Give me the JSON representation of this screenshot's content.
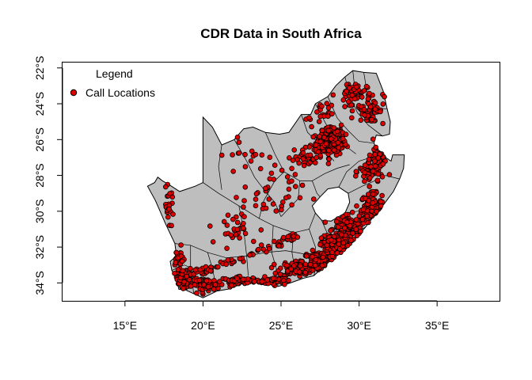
{
  "map": {
    "title": "CDR Data in South Africa",
    "projection": "plain longitude/latitude (base R plot)",
    "x_axis": {
      "range": [
        11,
        39
      ],
      "ticks": [
        15,
        20,
        25,
        30,
        35
      ],
      "tick_labels": [
        "15°E",
        "20°E",
        "25°E",
        "30°E",
        "35°E"
      ]
    },
    "y_axis": {
      "range": [
        -35,
        -21.7
      ],
      "ticks": [
        -22,
        -24,
        -26,
        -28,
        -30,
        -32,
        -34
      ],
      "tick_labels": [
        "22°S",
        "24°S",
        "26°S",
        "28°S",
        "30°S",
        "32°S",
        "34°S"
      ]
    },
    "legend": {
      "title": "Legend",
      "position": "top-left",
      "items": [
        {
          "label": "Call Locations",
          "color": "#e00000"
        }
      ]
    },
    "colors": {
      "land": "#bebebe",
      "boundary": "#000000",
      "point_fill": "#e00000",
      "point_stroke": "#000000",
      "lesotho": "#ffffff"
    },
    "outline": [
      [
        16.45,
        -28.6
      ],
      [
        16.9,
        -28.4
      ],
      [
        17.1,
        -28.1
      ],
      [
        17.4,
        -28.3
      ],
      [
        17.8,
        -28.5
      ],
      [
        18.5,
        -28.9
      ],
      [
        19.5,
        -28.6
      ],
      [
        20.0,
        -28.4
      ],
      [
        20.0,
        -24.75
      ],
      [
        20.6,
        -25.3
      ],
      [
        21.2,
        -26.3
      ],
      [
        22.0,
        -26.0
      ],
      [
        22.6,
        -25.4
      ],
      [
        23.2,
        -25.3
      ],
      [
        24.0,
        -25.6
      ],
      [
        24.9,
        -25.7
      ],
      [
        25.5,
        -25.6
      ],
      [
        26.3,
        -24.6
      ],
      [
        26.9,
        -24.6
      ],
      [
        27.2,
        -24.0
      ],
      [
        28.0,
        -23.6
      ],
      [
        28.5,
        -23.0
      ],
      [
        29.1,
        -22.5
      ],
      [
        29.6,
        -22.15
      ],
      [
        30.3,
        -22.25
      ],
      [
        31.1,
        -22.3
      ],
      [
        31.55,
        -23.3
      ],
      [
        31.8,
        -24.3
      ],
      [
        32.0,
        -25.0
      ],
      [
        31.95,
        -25.7
      ],
      [
        31.5,
        -25.8
      ],
      [
        31.1,
        -25.75
      ],
      [
        30.95,
        -26.2
      ],
      [
        31.2,
        -26.6
      ],
      [
        31.7,
        -27.0
      ],
      [
        32.05,
        -27.2
      ],
      [
        32.15,
        -26.85
      ],
      [
        32.9,
        -26.85
      ],
      [
        32.85,
        -27.6
      ],
      [
        32.6,
        -28.2
      ],
      [
        32.2,
        -28.9
      ],
      [
        31.6,
        -29.6
      ],
      [
        31.0,
        -30.2
      ],
      [
        30.4,
        -30.9
      ],
      [
        29.8,
        -31.5
      ],
      [
        29.0,
        -32.2
      ],
      [
        28.1,
        -32.8
      ],
      [
        27.1,
        -33.6
      ],
      [
        26.4,
        -33.75
      ],
      [
        25.6,
        -34.0
      ],
      [
        24.8,
        -34.2
      ],
      [
        23.6,
        -33.95
      ],
      [
        22.5,
        -34.05
      ],
      [
        21.6,
        -34.35
      ],
      [
        20.9,
        -34.45
      ],
      [
        20.0,
        -34.83
      ],
      [
        19.4,
        -34.6
      ],
      [
        18.9,
        -34.4
      ],
      [
        18.45,
        -34.35
      ],
      [
        18.3,
        -33.8
      ],
      [
        18.0,
        -33.3
      ],
      [
        17.9,
        -32.8
      ],
      [
        18.3,
        -32.5
      ],
      [
        18.2,
        -31.8
      ],
      [
        17.6,
        -30.7
      ],
      [
        17.2,
        -29.9
      ],
      [
        16.95,
        -29.4
      ],
      [
        16.45,
        -28.6
      ]
    ],
    "lesotho": [
      [
        27.0,
        -29.7
      ],
      [
        27.5,
        -29.2
      ],
      [
        28.0,
        -28.75
      ],
      [
        28.7,
        -28.65
      ],
      [
        29.3,
        -29.0
      ],
      [
        29.4,
        -29.5
      ],
      [
        29.1,
        -30.1
      ],
      [
        28.2,
        -30.55
      ],
      [
        27.6,
        -30.5
      ],
      [
        27.2,
        -30.1
      ],
      [
        27.0,
        -29.7
      ]
    ],
    "district_lines": [
      [
        [
          20.0,
          -28.4
        ],
        [
          21.0,
          -29.0
        ],
        [
          22.3,
          -29.7
        ],
        [
          23.6,
          -30.4
        ],
        [
          24.5,
          -30.8
        ],
        [
          25.8,
          -31.2
        ],
        [
          26.8,
          -31.0
        ],
        [
          27.2,
          -30.1
        ]
      ],
      [
        [
          18.2,
          -31.8
        ],
        [
          19.2,
          -31.9
        ],
        [
          20.3,
          -32.3
        ],
        [
          21.5,
          -32.6
        ],
        [
          22.8,
          -32.5
        ],
        [
          24.0,
          -32.3
        ],
        [
          25.3,
          -32.2
        ],
        [
          26.6,
          -32.4
        ],
        [
          27.9,
          -32.6
        ],
        [
          28.1,
          -32.8
        ]
      ],
      [
        [
          22.3,
          -29.7
        ],
        [
          22.6,
          -31.0
        ],
        [
          22.8,
          -32.5
        ],
        [
          22.9,
          -33.6
        ]
      ],
      [
        [
          24.5,
          -30.8
        ],
        [
          24.4,
          -32.3
        ],
        [
          24.7,
          -33.2
        ],
        [
          24.8,
          -34.2
        ]
      ],
      [
        [
          20.3,
          -32.3
        ],
        [
          20.6,
          -33.2
        ],
        [
          20.9,
          -34.45
        ]
      ],
      [
        [
          19.2,
          -31.9
        ],
        [
          19.2,
          -33.0
        ],
        [
          19.4,
          -34.6
        ]
      ],
      [
        [
          24.0,
          -25.6
        ],
        [
          24.6,
          -26.8
        ],
        [
          25.2,
          -27.8
        ],
        [
          26.2,
          -28.3
        ],
        [
          27.0,
          -28.3
        ],
        [
          27.8,
          -27.9
        ],
        [
          28.6,
          -27.6
        ],
        [
          29.4,
          -27.4
        ]
      ],
      [
        [
          22.0,
          -26.0
        ],
        [
          22.8,
          -27.2
        ],
        [
          23.3,
          -28.1
        ],
        [
          24.0,
          -28.9
        ],
        [
          24.6,
          -29.5
        ],
        [
          25.0,
          -30.3
        ]
      ],
      [
        [
          26.3,
          -24.6
        ],
        [
          26.7,
          -25.6
        ],
        [
          27.3,
          -26.1
        ],
        [
          27.9,
          -26.7
        ],
        [
          28.4,
          -27.2
        ]
      ],
      [
        [
          28.0,
          -23.6
        ],
        [
          28.6,
          -24.8
        ],
        [
          29.3,
          -25.5
        ],
        [
          30.0,
          -26.1
        ],
        [
          30.95,
          -26.2
        ]
      ],
      [
        [
          29.1,
          -22.5
        ],
        [
          29.4,
          -23.6
        ],
        [
          29.9,
          -24.5
        ],
        [
          30.6,
          -25.2
        ],
        [
          31.5,
          -25.8
        ]
      ],
      [
        [
          29.3,
          -29.0
        ],
        [
          30.2,
          -28.6
        ],
        [
          31.0,
          -28.3
        ],
        [
          31.7,
          -28.0
        ],
        [
          32.6,
          -28.2
        ]
      ],
      [
        [
          28.7,
          -28.65
        ],
        [
          29.2,
          -27.8
        ],
        [
          30.0,
          -27.2
        ],
        [
          31.1,
          -26.9
        ]
      ],
      [
        [
          29.1,
          -30.1
        ],
        [
          29.9,
          -30.0
        ],
        [
          30.6,
          -29.9
        ],
        [
          31.3,
          -30.0
        ]
      ],
      [
        [
          27.6,
          -30.5
        ],
        [
          28.0,
          -31.3
        ],
        [
          28.6,
          -31.8
        ],
        [
          29.2,
          -32.0
        ]
      ],
      [
        [
          26.8,
          -31.0
        ],
        [
          27.2,
          -32.0
        ],
        [
          27.3,
          -33.0
        ],
        [
          27.1,
          -33.6
        ]
      ],
      [
        [
          25.8,
          -31.2
        ],
        [
          25.7,
          -32.3
        ],
        [
          25.9,
          -33.3
        ],
        [
          26.4,
          -33.75
        ]
      ],
      [
        [
          23.6,
          -30.4
        ],
        [
          23.9,
          -29.4
        ],
        [
          24.6,
          -28.3
        ],
        [
          25.2,
          -27.8
        ]
      ],
      [
        [
          21.2,
          -26.3
        ],
        [
          21.0,
          -27.5
        ],
        [
          21.2,
          -28.8
        ]
      ],
      [
        [
          26.2,
          -28.3
        ],
        [
          26.1,
          -29.3
        ],
        [
          25.0,
          -30.3
        ]
      ],
      [
        [
          27.0,
          -28.3
        ],
        [
          27.3,
          -29.0
        ],
        [
          27.5,
          -29.2
        ]
      ],
      [
        [
          30.3,
          -22.25
        ],
        [
          30.5,
          -23.3
        ],
        [
          31.0,
          -24.2
        ],
        [
          31.8,
          -24.3
        ]
      ],
      [
        [
          27.2,
          -24.0
        ],
        [
          27.8,
          -25.0
        ],
        [
          28.3,
          -25.8
        ],
        [
          29.2,
          -26.4
        ],
        [
          29.8,
          -26.8
        ]
      ],
      [
        [
          18.0,
          -33.3
        ],
        [
          18.8,
          -33.0
        ],
        [
          19.6,
          -33.3
        ],
        [
          20.2,
          -33.8
        ]
      ],
      [
        [
          29.6,
          -22.15
        ],
        [
          29.7,
          -23.0
        ],
        [
          30.2,
          -23.8
        ]
      ],
      [
        [
          30.4,
          -30.9
        ],
        [
          29.9,
          -31.1
        ],
        [
          29.4,
          -31.6
        ]
      ]
    ],
    "call_clusters": [
      {
        "center": [
          28.2,
          -26.2
        ],
        "spread": [
          0.9,
          0.6
        ],
        "count": 130
      },
      {
        "center": [
          28.3,
          -25.6
        ],
        "spread": [
          0.7,
          0.5
        ],
        "count": 60
      },
      {
        "center": [
          30.8,
          -29.8
        ],
        "spread": [
          0.6,
          0.7
        ],
        "count": 120
      },
      {
        "center": [
          29.4,
          -31.0
        ],
        "spread": [
          1.0,
          0.7
        ],
        "count": 150
      },
      {
        "center": [
          27.5,
          -32.8
        ],
        "spread": [
          1.0,
          0.5
        ],
        "count": 150
      },
      {
        "center": [
          26.0,
          -33.2
        ],
        "spread": [
          1.0,
          0.4
        ],
        "count": 90
      },
      {
        "center": [
          28.5,
          -31.9
        ],
        "spread": [
          0.8,
          0.5
        ],
        "count": 110
      },
      {
        "center": [
          18.7,
          -33.8
        ],
        "spread": [
          0.5,
          0.5
        ],
        "count": 110
      },
      {
        "center": [
          20.2,
          -34.1
        ],
        "spread": [
          0.8,
          0.3
        ],
        "count": 70
      },
      {
        "center": [
          22.5,
          -33.9
        ],
        "spread": [
          1.1,
          0.2
        ],
        "count": 80
      },
      {
        "center": [
          24.5,
          -33.9
        ],
        "spread": [
          0.9,
          0.2
        ],
        "count": 50
      },
      {
        "center": [
          18.4,
          -32.6
        ],
        "spread": [
          0.3,
          0.5
        ],
        "count": 30
      },
      {
        "center": [
          17.8,
          -29.7
        ],
        "spread": [
          0.3,
          0.8
        ],
        "count": 25
      },
      {
        "center": [
          30.8,
          -27.8
        ],
        "spread": [
          0.7,
          0.7
        ],
        "count": 60
      },
      {
        "center": [
          31.3,
          -26.8
        ],
        "spread": [
          0.5,
          0.6
        ],
        "count": 40
      },
      {
        "center": [
          30.7,
          -24.2
        ],
        "spread": [
          0.8,
          0.9
        ],
        "count": 60
      },
      {
        "center": [
          29.5,
          -23.5
        ],
        "spread": [
          0.9,
          0.7
        ],
        "count": 45
      },
      {
        "center": [
          26.5,
          -27.0
        ],
        "spread": [
          1.0,
          0.6
        ],
        "count": 40
      },
      {
        "center": [
          24.5,
          -29.0
        ],
        "spread": [
          1.8,
          1.4
        ],
        "count": 40
      },
      {
        "center": [
          22.0,
          -31.0
        ],
        "spread": [
          1.5,
          0.9
        ],
        "count": 30
      },
      {
        "center": [
          22.8,
          -26.8
        ],
        "spread": [
          1.2,
          0.8
        ],
        "count": 15
      },
      {
        "center": [
          27.5,
          -24.5
        ],
        "spread": [
          0.8,
          0.5
        ],
        "count": 20
      }
    ],
    "call_band": {
      "path": [
        [
          18.6,
          -33.5
        ],
        [
          20.5,
          -33.2
        ],
        [
          22.5,
          -32.6
        ],
        [
          24.5,
          -31.9
        ],
        [
          26.0,
          -31.3
        ]
      ],
      "count": 80,
      "jitter": 0.12
    }
  }
}
